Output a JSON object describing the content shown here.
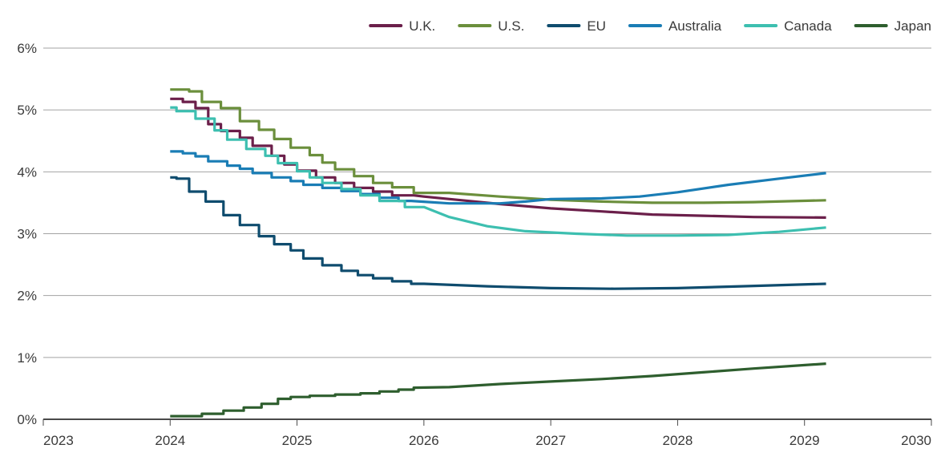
{
  "chart_data": {
    "type": "line",
    "title": "",
    "xlabel": "",
    "ylabel": "",
    "xlim": [
      2023,
      2030
    ],
    "ylim": [
      0,
      6
    ],
    "x_ticks": [
      2023,
      2024,
      2025,
      2026,
      2027,
      2028,
      2029,
      2030
    ],
    "x_tick_labels": [
      "2023",
      "2024",
      "2025",
      "2026",
      "2027",
      "2028",
      "2029",
      "2030"
    ],
    "y_ticks": [
      0,
      1,
      2,
      3,
      4,
      5,
      6
    ],
    "y_tick_labels": [
      "0%",
      "1%",
      "2%",
      "3%",
      "4%",
      "5%",
      "6%"
    ],
    "grid": "horizontal",
    "legend_position": "top-right",
    "series": [
      {
        "name": "U.K.",
        "color": "#6b1f4a",
        "step_end": 2025.92,
        "points": [
          [
            2024.0,
            5.18
          ],
          [
            2024.1,
            5.18
          ],
          [
            2024.1,
            5.13
          ],
          [
            2024.2,
            5.13
          ],
          [
            2024.2,
            5.03
          ],
          [
            2024.3,
            5.03
          ],
          [
            2024.3,
            4.77
          ],
          [
            2024.4,
            4.77
          ],
          [
            2024.4,
            4.66
          ],
          [
            2024.55,
            4.66
          ],
          [
            2024.55,
            4.55
          ],
          [
            2024.65,
            4.55
          ],
          [
            2024.65,
            4.42
          ],
          [
            2024.8,
            4.42
          ],
          [
            2024.8,
            4.26
          ],
          [
            2024.9,
            4.26
          ],
          [
            2024.9,
            4.12
          ],
          [
            2025.0,
            4.12
          ],
          [
            2025.0,
            4.02
          ],
          [
            2025.15,
            4.02
          ],
          [
            2025.15,
            3.91
          ],
          [
            2025.3,
            3.91
          ],
          [
            2025.3,
            3.82
          ],
          [
            2025.45,
            3.82
          ],
          [
            2025.45,
            3.74
          ],
          [
            2025.6,
            3.74
          ],
          [
            2025.6,
            3.68
          ],
          [
            2025.75,
            3.68
          ],
          [
            2025.75,
            3.62
          ],
          [
            2025.92,
            3.62
          ],
          [
            2026.0,
            3.6
          ],
          [
            2026.3,
            3.54
          ],
          [
            2026.6,
            3.48
          ],
          [
            2027.0,
            3.41
          ],
          [
            2027.4,
            3.36
          ],
          [
            2027.8,
            3.31
          ],
          [
            2028.2,
            3.29
          ],
          [
            2028.6,
            3.27
          ],
          [
            2029.17,
            3.26
          ]
        ]
      },
      {
        "name": "U.S.",
        "color": "#6b8f3c",
        "step_end": 2025.92,
        "points": [
          [
            2024.0,
            5.33
          ],
          [
            2024.15,
            5.33
          ],
          [
            2024.15,
            5.3
          ],
          [
            2024.25,
            5.3
          ],
          [
            2024.25,
            5.13
          ],
          [
            2024.4,
            5.13
          ],
          [
            2024.4,
            5.03
          ],
          [
            2024.55,
            5.03
          ],
          [
            2024.55,
            4.82
          ],
          [
            2024.7,
            4.82
          ],
          [
            2024.7,
            4.68
          ],
          [
            2024.82,
            4.68
          ],
          [
            2024.82,
            4.53
          ],
          [
            2024.95,
            4.53
          ],
          [
            2024.95,
            4.39
          ],
          [
            2025.1,
            4.39
          ],
          [
            2025.1,
            4.27
          ],
          [
            2025.2,
            4.27
          ],
          [
            2025.2,
            4.15
          ],
          [
            2025.3,
            4.15
          ],
          [
            2025.3,
            4.04
          ],
          [
            2025.45,
            4.04
          ],
          [
            2025.45,
            3.93
          ],
          [
            2025.6,
            3.93
          ],
          [
            2025.6,
            3.82
          ],
          [
            2025.75,
            3.82
          ],
          [
            2025.75,
            3.75
          ],
          [
            2025.92,
            3.75
          ],
          [
            2025.92,
            3.66
          ],
          [
            2026.2,
            3.66
          ],
          [
            2026.6,
            3.6
          ],
          [
            2027.0,
            3.55
          ],
          [
            2027.4,
            3.52
          ],
          [
            2027.8,
            3.5
          ],
          [
            2028.2,
            3.5
          ],
          [
            2028.6,
            3.51
          ],
          [
            2029.17,
            3.54
          ]
        ]
      },
      {
        "name": "EU",
        "color": "#0f4c6e",
        "step_end": 2026.0,
        "points": [
          [
            2024.0,
            3.91
          ],
          [
            2024.05,
            3.91
          ],
          [
            2024.05,
            3.89
          ],
          [
            2024.15,
            3.89
          ],
          [
            2024.15,
            3.68
          ],
          [
            2024.28,
            3.68
          ],
          [
            2024.28,
            3.52
          ],
          [
            2024.42,
            3.52
          ],
          [
            2024.42,
            3.3
          ],
          [
            2024.55,
            3.3
          ],
          [
            2024.55,
            3.14
          ],
          [
            2024.7,
            3.14
          ],
          [
            2024.7,
            2.96
          ],
          [
            2024.82,
            2.96
          ],
          [
            2024.82,
            2.83
          ],
          [
            2024.95,
            2.83
          ],
          [
            2024.95,
            2.73
          ],
          [
            2025.05,
            2.73
          ],
          [
            2025.05,
            2.6
          ],
          [
            2025.2,
            2.6
          ],
          [
            2025.2,
            2.49
          ],
          [
            2025.35,
            2.49
          ],
          [
            2025.35,
            2.4
          ],
          [
            2025.48,
            2.4
          ],
          [
            2025.48,
            2.33
          ],
          [
            2025.6,
            2.33
          ],
          [
            2025.6,
            2.28
          ],
          [
            2025.75,
            2.28
          ],
          [
            2025.75,
            2.23
          ],
          [
            2025.9,
            2.23
          ],
          [
            2025.9,
            2.19
          ],
          [
            2026.0,
            2.19
          ],
          [
            2026.5,
            2.15
          ],
          [
            2027.0,
            2.12
          ],
          [
            2027.5,
            2.11
          ],
          [
            2028.0,
            2.12
          ],
          [
            2028.5,
            2.15
          ],
          [
            2029.17,
            2.19
          ]
        ]
      },
      {
        "name": "Australia",
        "color": "#1a7db5",
        "step_end": 2025.9,
        "points": [
          [
            2024.0,
            4.33
          ],
          [
            2024.1,
            4.33
          ],
          [
            2024.1,
            4.3
          ],
          [
            2024.2,
            4.3
          ],
          [
            2024.2,
            4.25
          ],
          [
            2024.3,
            4.25
          ],
          [
            2024.3,
            4.17
          ],
          [
            2024.45,
            4.17
          ],
          [
            2024.45,
            4.1
          ],
          [
            2024.55,
            4.1
          ],
          [
            2024.55,
            4.05
          ],
          [
            2024.65,
            4.05
          ],
          [
            2024.65,
            3.98
          ],
          [
            2024.8,
            3.98
          ],
          [
            2024.8,
            3.91
          ],
          [
            2024.95,
            3.91
          ],
          [
            2024.95,
            3.85
          ],
          [
            2025.05,
            3.85
          ],
          [
            2025.05,
            3.79
          ],
          [
            2025.2,
            3.79
          ],
          [
            2025.2,
            3.74
          ],
          [
            2025.35,
            3.74
          ],
          [
            2025.35,
            3.69
          ],
          [
            2025.5,
            3.69
          ],
          [
            2025.5,
            3.64
          ],
          [
            2025.65,
            3.64
          ],
          [
            2025.65,
            3.58
          ],
          [
            2025.8,
            3.58
          ],
          [
            2025.8,
            3.53
          ],
          [
            2025.9,
            3.53
          ],
          [
            2026.2,
            3.49
          ],
          [
            2026.6,
            3.49
          ],
          [
            2026.8,
            3.52
          ],
          [
            2027.0,
            3.56
          ],
          [
            2027.4,
            3.57
          ],
          [
            2027.7,
            3.6
          ],
          [
            2028.0,
            3.67
          ],
          [
            2028.4,
            3.79
          ],
          [
            2028.8,
            3.89
          ],
          [
            2029.17,
            3.98
          ]
        ]
      },
      {
        "name": "Canada",
        "color": "#3dbfb0",
        "step_end": 2026.0,
        "points": [
          [
            2024.0,
            5.04
          ],
          [
            2024.05,
            5.04
          ],
          [
            2024.05,
            4.98
          ],
          [
            2024.2,
            4.98
          ],
          [
            2024.2,
            4.86
          ],
          [
            2024.35,
            4.86
          ],
          [
            2024.35,
            4.67
          ],
          [
            2024.45,
            4.67
          ],
          [
            2024.45,
            4.52
          ],
          [
            2024.6,
            4.52
          ],
          [
            2024.6,
            4.37
          ],
          [
            2024.75,
            4.37
          ],
          [
            2024.75,
            4.26
          ],
          [
            2024.85,
            4.26
          ],
          [
            2024.85,
            4.14
          ],
          [
            2025.0,
            4.14
          ],
          [
            2025.0,
            4.01
          ],
          [
            2025.1,
            4.01
          ],
          [
            2025.1,
            3.91
          ],
          [
            2025.2,
            3.91
          ],
          [
            2025.2,
            3.82
          ],
          [
            2025.35,
            3.82
          ],
          [
            2025.35,
            3.72
          ],
          [
            2025.5,
            3.72
          ],
          [
            2025.5,
            3.62
          ],
          [
            2025.65,
            3.62
          ],
          [
            2025.65,
            3.53
          ],
          [
            2025.85,
            3.53
          ],
          [
            2025.85,
            3.43
          ],
          [
            2026.0,
            3.43
          ],
          [
            2026.2,
            3.27
          ],
          [
            2026.5,
            3.12
          ],
          [
            2026.8,
            3.04
          ],
          [
            2027.2,
            3.0
          ],
          [
            2027.6,
            2.97
          ],
          [
            2028.0,
            2.97
          ],
          [
            2028.4,
            2.98
          ],
          [
            2028.8,
            3.03
          ],
          [
            2029.17,
            3.1
          ]
        ]
      },
      {
        "name": "Japan",
        "color": "#2e5e2e",
        "step_end": 2025.92,
        "points": [
          [
            2024.0,
            0.05
          ],
          [
            2024.25,
            0.05
          ],
          [
            2024.25,
            0.09
          ],
          [
            2024.42,
            0.09
          ],
          [
            2024.42,
            0.14
          ],
          [
            2024.58,
            0.14
          ],
          [
            2024.58,
            0.19
          ],
          [
            2024.72,
            0.19
          ],
          [
            2024.72,
            0.25
          ],
          [
            2024.85,
            0.25
          ],
          [
            2024.85,
            0.33
          ],
          [
            2024.95,
            0.33
          ],
          [
            2024.95,
            0.36
          ],
          [
            2025.1,
            0.36
          ],
          [
            2025.1,
            0.38
          ],
          [
            2025.3,
            0.38
          ],
          [
            2025.3,
            0.4
          ],
          [
            2025.5,
            0.4
          ],
          [
            2025.5,
            0.42
          ],
          [
            2025.65,
            0.42
          ],
          [
            2025.65,
            0.45
          ],
          [
            2025.8,
            0.45
          ],
          [
            2025.8,
            0.48
          ],
          [
            2025.92,
            0.48
          ],
          [
            2025.92,
            0.51
          ],
          [
            2026.2,
            0.52
          ],
          [
            2026.6,
            0.57
          ],
          [
            2027.0,
            0.61
          ],
          [
            2027.4,
            0.65
          ],
          [
            2027.8,
            0.7
          ],
          [
            2028.2,
            0.76
          ],
          [
            2028.6,
            0.82
          ],
          [
            2029.17,
            0.9
          ]
        ]
      }
    ]
  }
}
